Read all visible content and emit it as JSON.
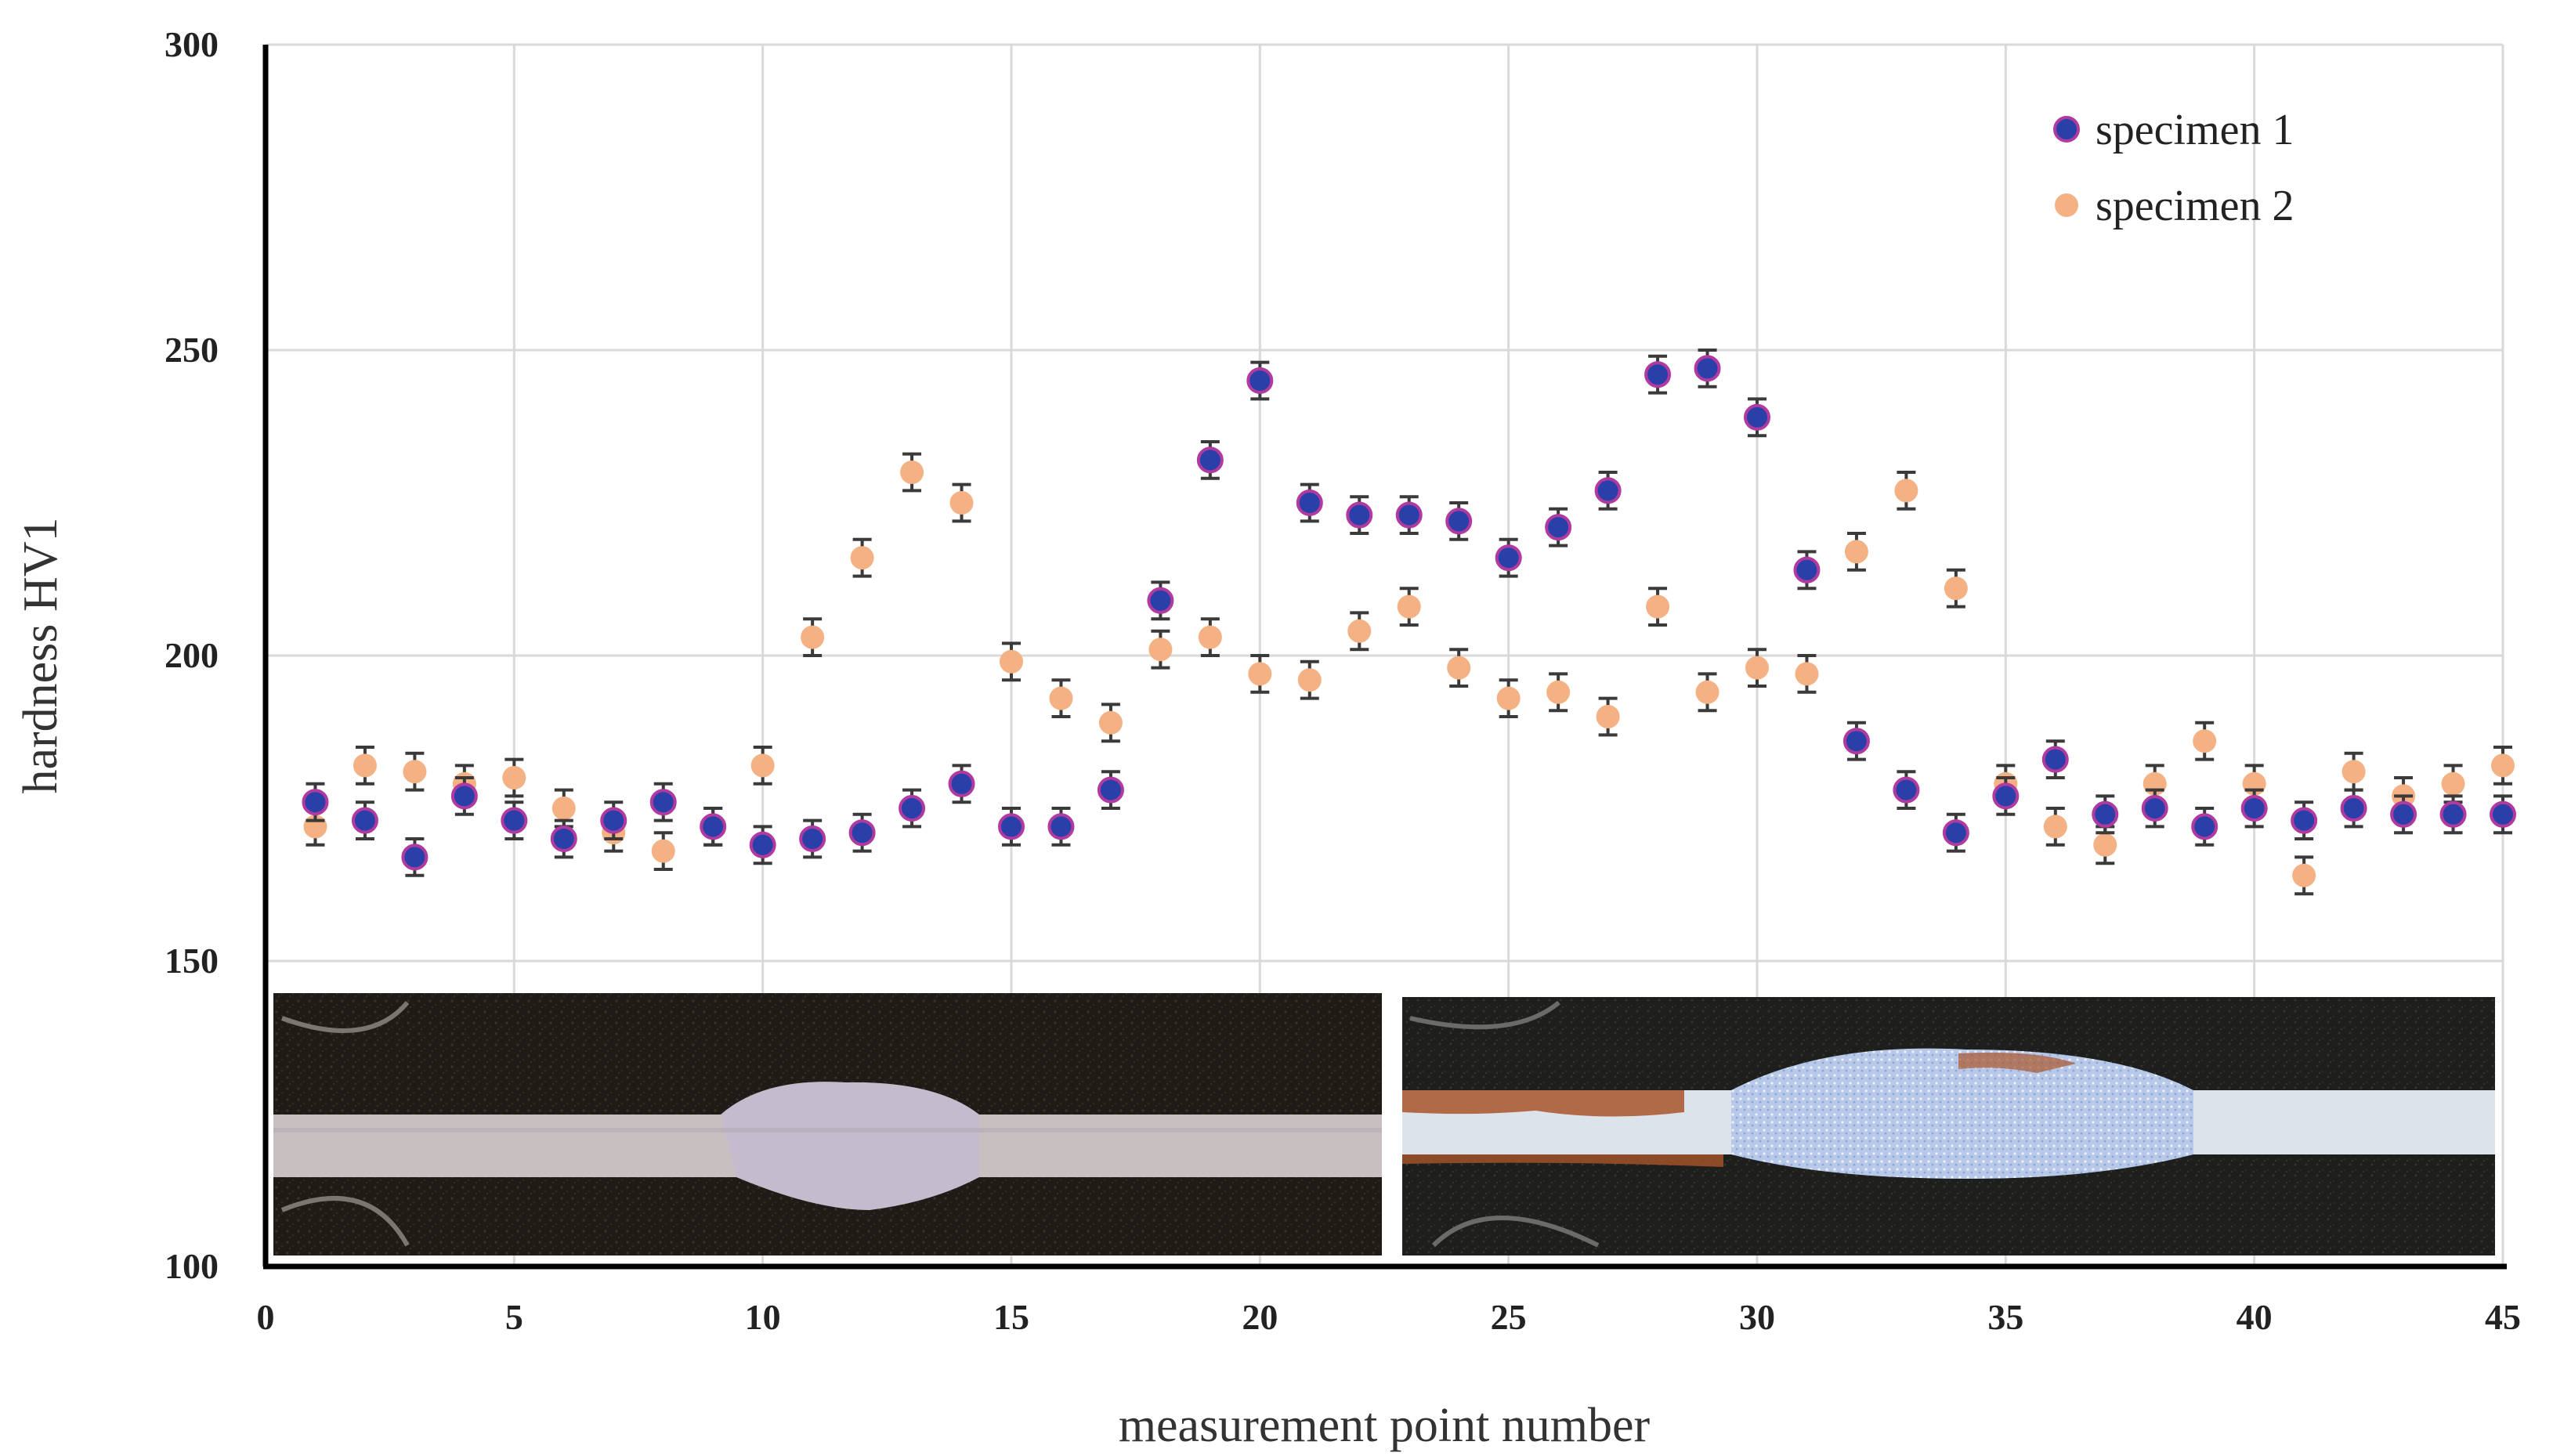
{
  "chart_data": {
    "type": "scatter",
    "xlabel": "measurement point number",
    "ylabel": "hardness HV1",
    "xlim": [
      0,
      45
    ],
    "ylim": [
      100,
      300
    ],
    "x_ticks": [
      0,
      5,
      10,
      15,
      20,
      25,
      30,
      35,
      40,
      45
    ],
    "y_ticks": [
      100,
      150,
      200,
      250,
      300
    ],
    "grid": true,
    "legend_position": "top-right",
    "error_bar_half_width": 3,
    "x": [
      1,
      2,
      3,
      4,
      5,
      6,
      7,
      8,
      9,
      10,
      11,
      12,
      13,
      14,
      15,
      16,
      17,
      18,
      19,
      20,
      21,
      22,
      23,
      24,
      25,
      26,
      27,
      28,
      29,
      30,
      31,
      32,
      33,
      34,
      35,
      36,
      37,
      38,
      39,
      40,
      41,
      42,
      43,
      44,
      45
    ],
    "series": [
      {
        "name": "specimen 1",
        "color": "#2b3fa8",
        "edge_color": "#b03aa0",
        "values": [
          176,
          173,
          167,
          177,
          173,
          170,
          173,
          176,
          172,
          169,
          170,
          171,
          175,
          179,
          172,
          172,
          178,
          209,
          232,
          245,
          225,
          223,
          223,
          222,
          216,
          221,
          227,
          246,
          247,
          239,
          214,
          186,
          178,
          171,
          177,
          183,
          174,
          175,
          172,
          175,
          173,
          175,
          174,
          174,
          174
        ]
      },
      {
        "name": "specimen 2",
        "color": "#f4b183",
        "edge_color": "#f4b183",
        "values": [
          172,
          182,
          181,
          179,
          180,
          175,
          171,
          168,
          172,
          182,
          203,
          216,
          230,
          225,
          199,
          193,
          189,
          201,
          203,
          197,
          196,
          204,
          208,
          198,
          193,
          194,
          190,
          208,
          194,
          198,
          197,
          217,
          227,
          211,
          179,
          172,
          169,
          179,
          186,
          179,
          164,
          181,
          177,
          179,
          182
        ]
      }
    ]
  },
  "inset": {
    "left_photo": {
      "background": "#1f1c17",
      "strip": "#c8bfc0",
      "nugget": "#c4bccd"
    },
    "right_photo": {
      "background": "#1e1f1c",
      "strip": "#dce3ea",
      "nugget": "#b7c8e8",
      "rust": "#a9552b"
    }
  }
}
